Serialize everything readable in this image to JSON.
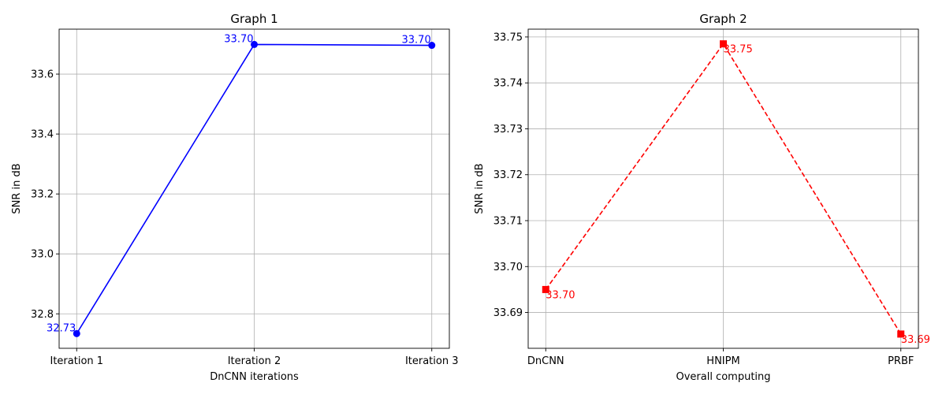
{
  "chart_data": [
    {
      "type": "line",
      "title": "Graph 1",
      "xlabel": "DnCNN iterations",
      "ylabel": "SNR in dB",
      "categories": [
        "Iteration 1",
        "Iteration 2",
        "Iteration 3"
      ],
      "values": [
        32.734,
        33.699,
        33.696
      ],
      "data_labels": [
        "32.73",
        "33.70",
        "33.70"
      ],
      "ylim": [
        32.685,
        33.75
      ],
      "yticks": [
        32.8,
        33.0,
        33.2,
        33.4,
        33.6
      ],
      "ytick_labels": [
        "32.8",
        "33.0",
        "33.2",
        "33.4",
        "33.6"
      ],
      "grid": true,
      "color": "#0000ff",
      "line_style": "solid",
      "marker": "circle",
      "label_position": "upper-left"
    },
    {
      "type": "line",
      "title": "Graph 2",
      "xlabel": "Overall computing",
      "ylabel": "SNR in dB",
      "categories": [
        "DnCNN",
        "HNIPM",
        "PRBF"
      ],
      "values": [
        33.695,
        33.7485,
        33.6853
      ],
      "data_labels": [
        "33.70",
        "33.75",
        "33.69"
      ],
      "ylim": [
        33.6822,
        33.7517
      ],
      "yticks": [
        33.69,
        33.7,
        33.71,
        33.72,
        33.73,
        33.74,
        33.75
      ],
      "ytick_labels": [
        "33.69",
        "33.70",
        "33.71",
        "33.72",
        "33.73",
        "33.74",
        "33.75"
      ],
      "grid": true,
      "color": "#ff0000",
      "line_style": "dashed",
      "marker": "square",
      "label_position": "lower-right"
    }
  ]
}
